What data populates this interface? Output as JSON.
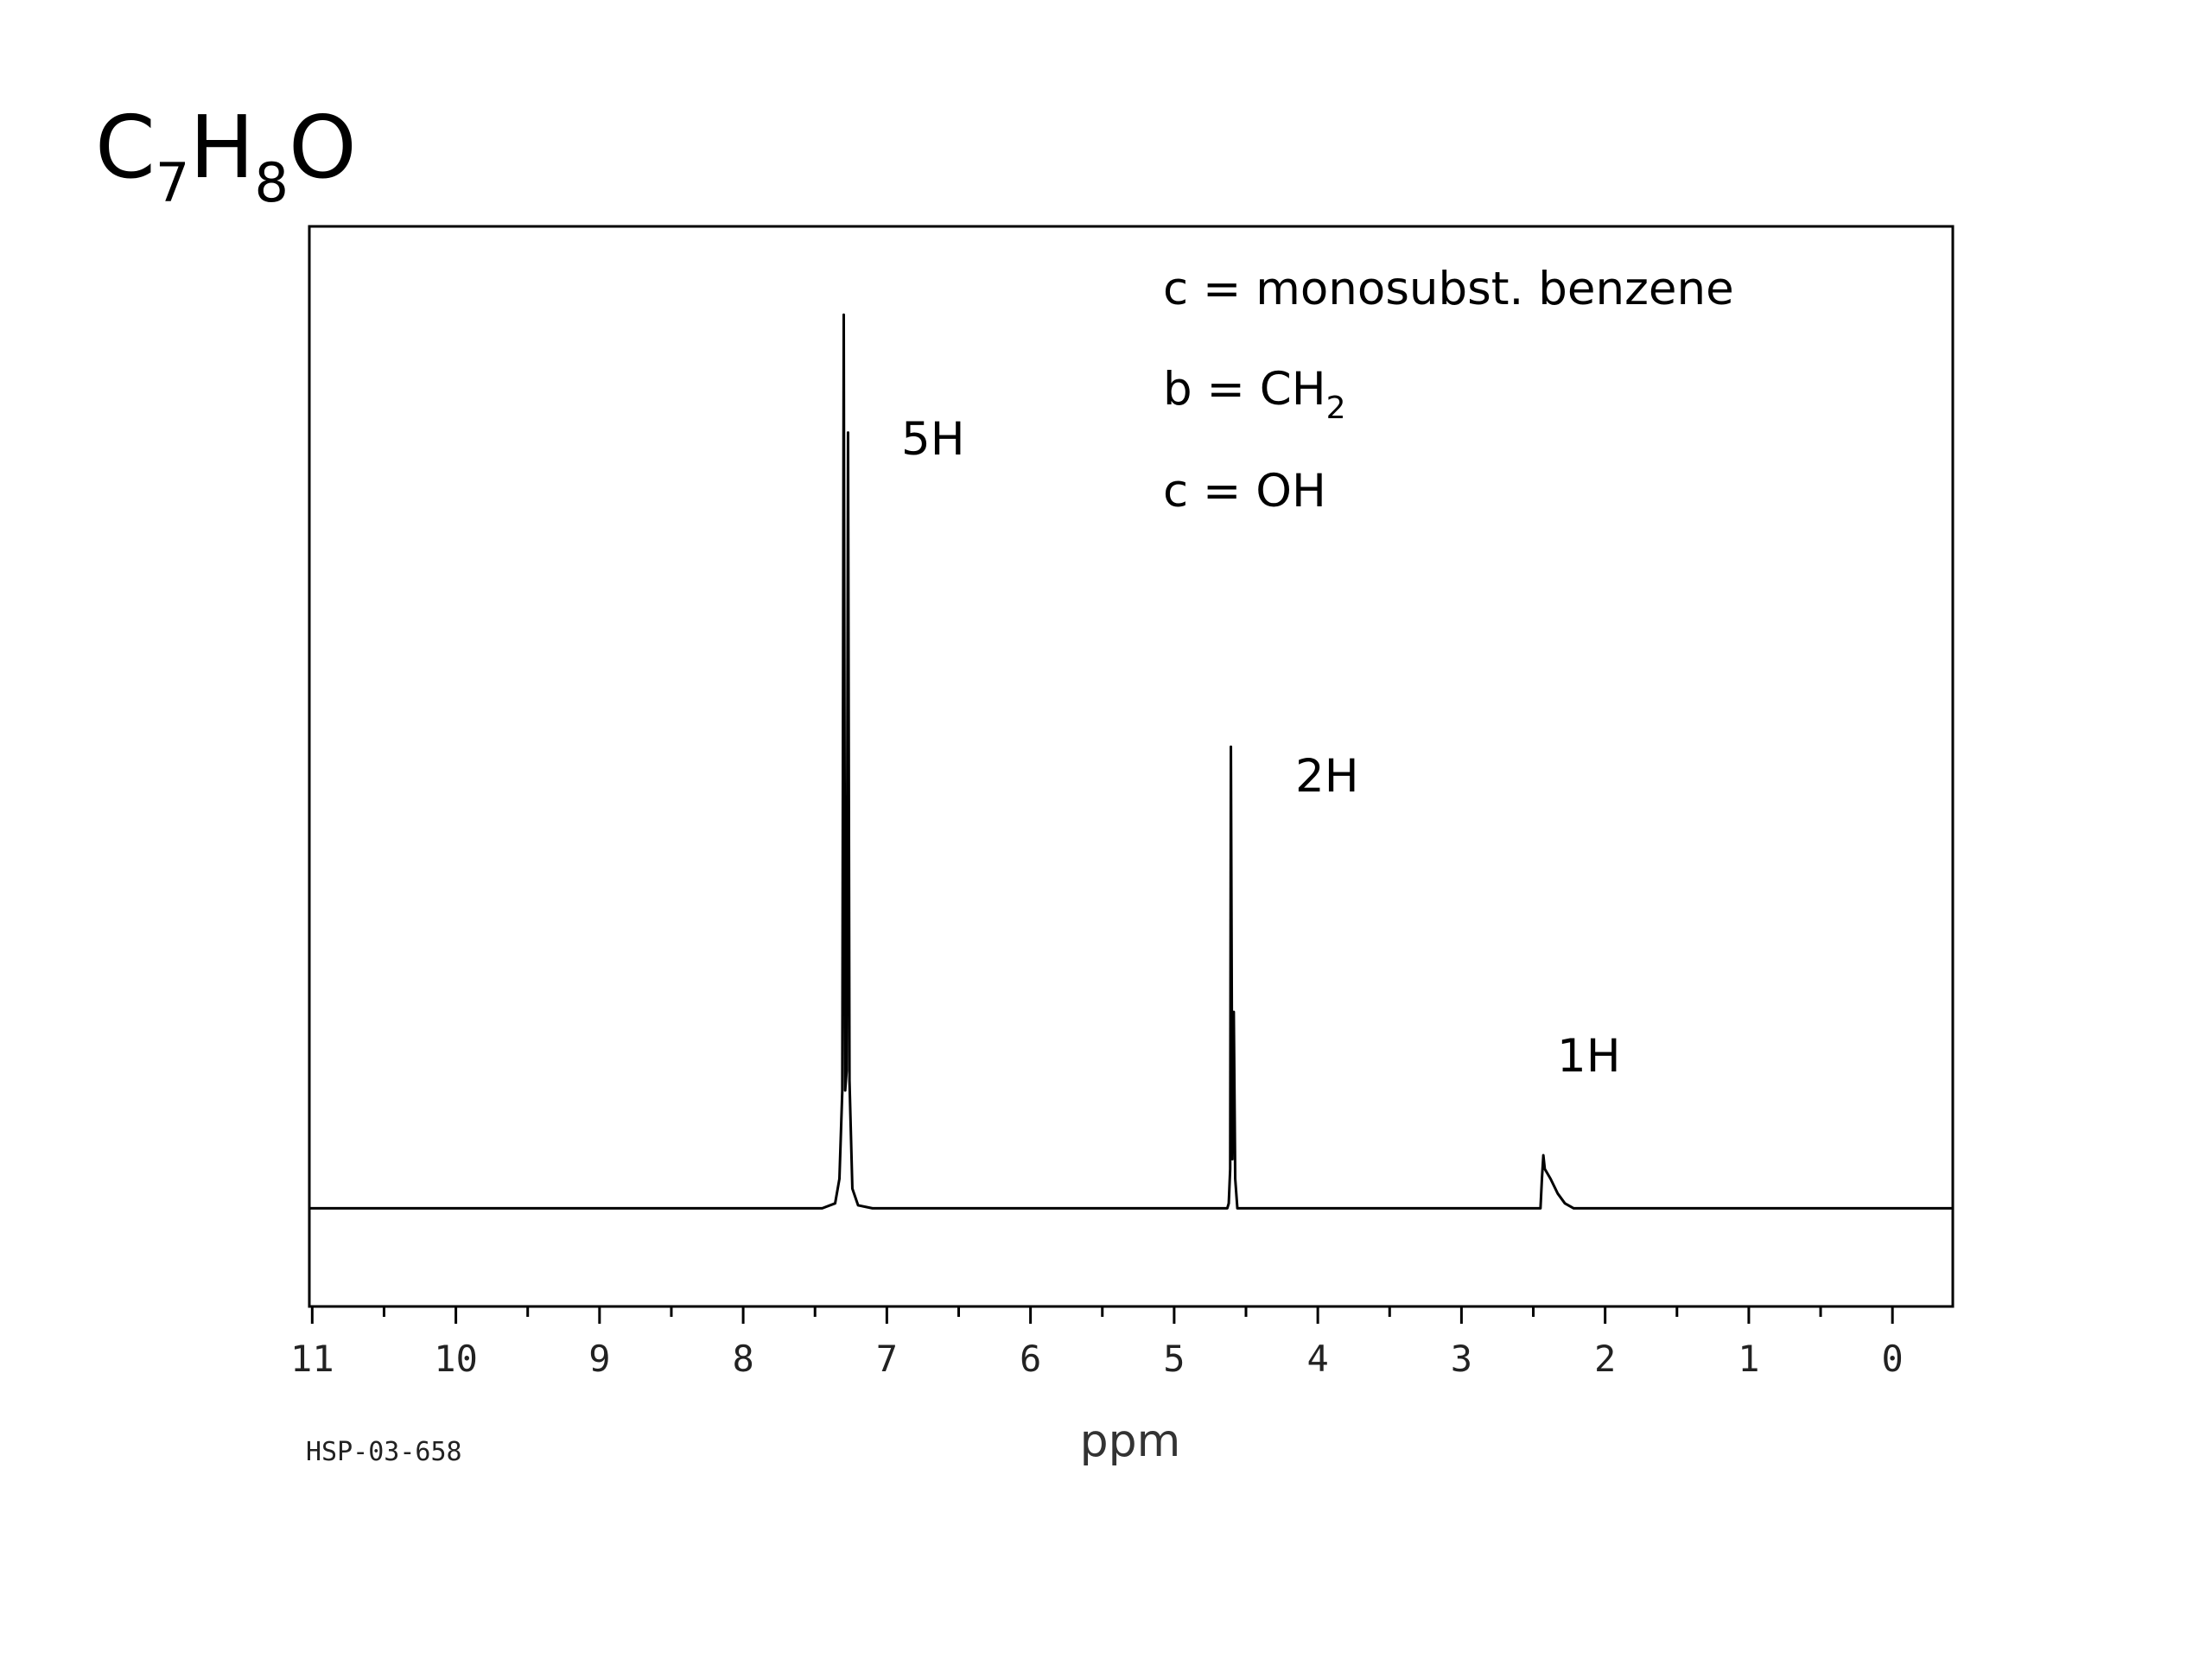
{
  "chart_data": {
    "type": "line",
    "title_parts": [
      "C",
      "7",
      "H",
      "8",
      "O"
    ],
    "annotations": [
      "c = monosubst. benzene",
      "c = OH"
    ],
    "annotation_ch2_parts": [
      "b = CH",
      "2"
    ],
    "peak_labels": [
      "5H",
      "2H",
      "1H"
    ],
    "x_label": "ppm",
    "code": "HSP-03-658",
    "color": "#000000",
    "x": [
      11.02,
      7.45,
      7.36,
      7.33,
      7.31,
      7.3,
      7.29,
      7.28,
      7.27,
      7.26,
      7.24,
      7.2,
      7.1,
      4.63,
      4.62,
      4.61,
      4.605,
      4.595,
      4.585,
      4.575,
      4.56,
      2.45,
      2.44,
      2.43,
      2.42,
      2.38,
      2.33,
      2.28,
      2.22,
      -0.42
    ],
    "values": [
      0,
      0,
      0.5,
      3,
      12,
      91,
      12,
      14,
      79,
      13,
      2,
      0.3,
      0,
      0,
      0.5,
      4,
      47,
      5,
      20,
      3,
      0,
      0,
      3,
      5.4,
      4,
      3,
      1.5,
      0.5,
      0,
      0
    ],
    "xlim": [
      11.02,
      -0.42
    ],
    "ylim": [
      -10,
      100
    ],
    "xticks": [
      11,
      10,
      9,
      8,
      7,
      6,
      5,
      4,
      3,
      2,
      1,
      0
    ],
    "xminorticks": [
      10.5,
      9.5,
      8.5,
      7.5,
      6.5,
      5.5,
      4.5,
      3.5,
      2.5,
      1.5,
      0.5
    ]
  }
}
